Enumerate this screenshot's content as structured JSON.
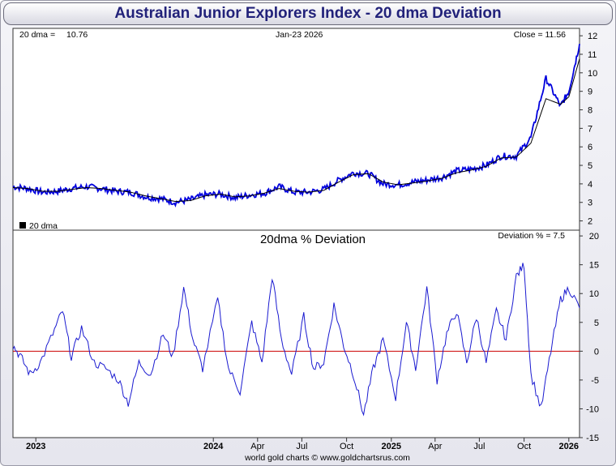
{
  "title": "Australian Junior Explorers Index - 20 dma Deviation",
  "footer": "world gold charts © www.goldchartsrus.com",
  "colors": {
    "price": "#0000dd",
    "dma": "#000000",
    "deviation": "#1a1ad0",
    "zero_line": "#cc0000",
    "title_text": "#22227a"
  },
  "chart_data": [
    {
      "type": "line",
      "panel": "price",
      "info_left_label": "20 dma =",
      "info_left_value": "10.76",
      "info_center": "Jan-23  2026",
      "info_right": "Close = 11.56",
      "legend": "20 dma",
      "ylim": [
        1.5,
        12.4
      ],
      "yticks": [
        "2",
        "3",
        "4",
        "5",
        "6",
        "7",
        "8",
        "9",
        "10",
        "11",
        "12"
      ],
      "series": [
        {
          "name": "price",
          "points": [
            [
              "2022-11-15",
              3.85
            ],
            [
              "2022-12-15",
              3.75
            ],
            [
              "2023-01-15",
              3.55
            ],
            [
              "2023-02-15",
              3.6
            ],
            [
              "2023-03-15",
              3.75
            ],
            [
              "2023-04-15",
              3.85
            ],
            [
              "2023-05-15",
              3.75
            ],
            [
              "2023-06-15",
              3.6
            ],
            [
              "2023-07-15",
              3.55
            ],
            [
              "2023-08-15",
              3.3
            ],
            [
              "2023-09-15",
              3.2
            ],
            [
              "2023-10-15",
              3.0
            ],
            [
              "2023-11-15",
              3.15
            ],
            [
              "2023-12-15",
              3.4
            ],
            [
              "2024-01-15",
              3.45
            ],
            [
              "2024-02-15",
              3.25
            ],
            [
              "2024-03-15",
              3.4
            ],
            [
              "2024-04-15",
              3.5
            ],
            [
              "2024-05-15",
              3.85
            ],
            [
              "2024-06-15",
              3.55
            ],
            [
              "2024-07-15",
              3.55
            ],
            [
              "2024-08-15",
              3.7
            ],
            [
              "2024-09-15",
              4.2
            ],
            [
              "2024-10-15",
              4.6
            ],
            [
              "2024-11-15",
              4.55
            ],
            [
              "2024-12-15",
              4.0
            ],
            [
              "2025-01-15",
              3.95
            ],
            [
              "2025-02-15",
              4.1
            ],
            [
              "2025-03-15",
              4.2
            ],
            [
              "2025-04-15",
              4.35
            ],
            [
              "2025-05-15",
              4.7
            ],
            [
              "2025-06-15",
              4.8
            ],
            [
              "2025-07-15",
              5.0
            ],
            [
              "2025-08-15",
              5.5
            ],
            [
              "2025-09-15",
              5.5
            ],
            [
              "2025-10-15",
              6.5
            ],
            [
              "2025-11-15",
              9.7
            ],
            [
              "2025-12-15",
              8.2
            ],
            [
              "2026-01-01",
              9.0
            ],
            [
              "2026-01-23",
              11.56
            ]
          ]
        },
        {
          "name": "20 dma",
          "points": [
            [
              "2022-11-15",
              3.8
            ],
            [
              "2022-12-15",
              3.75
            ],
            [
              "2023-01-15",
              3.6
            ],
            [
              "2023-02-15",
              3.6
            ],
            [
              "2023-03-15",
              3.7
            ],
            [
              "2023-04-15",
              3.8
            ],
            [
              "2023-05-15",
              3.75
            ],
            [
              "2023-06-15",
              3.65
            ],
            [
              "2023-07-15",
              3.55
            ],
            [
              "2023-08-15",
              3.35
            ],
            [
              "2023-09-15",
              3.2
            ],
            [
              "2023-10-15",
              3.05
            ],
            [
              "2023-11-15",
              3.1
            ],
            [
              "2023-12-15",
              3.35
            ],
            [
              "2024-01-15",
              3.45
            ],
            [
              "2024-02-15",
              3.3
            ],
            [
              "2024-03-15",
              3.35
            ],
            [
              "2024-04-15",
              3.5
            ],
            [
              "2024-05-15",
              3.75
            ],
            [
              "2024-06-15",
              3.6
            ],
            [
              "2024-07-15",
              3.55
            ],
            [
              "2024-08-15",
              3.65
            ],
            [
              "2024-09-15",
              4.1
            ],
            [
              "2024-10-15",
              4.5
            ],
            [
              "2024-11-15",
              4.55
            ],
            [
              "2024-12-15",
              4.1
            ],
            [
              "2025-01-15",
              3.95
            ],
            [
              "2025-02-15",
              4.05
            ],
            [
              "2025-03-15",
              4.15
            ],
            [
              "2025-04-15",
              4.3
            ],
            [
              "2025-05-15",
              4.6
            ],
            [
              "2025-06-15",
              4.75
            ],
            [
              "2025-07-15",
              4.95
            ],
            [
              "2025-08-15",
              5.4
            ],
            [
              "2025-09-15",
              5.45
            ],
            [
              "2025-10-15",
              6.2
            ],
            [
              "2025-11-15",
              8.6
            ],
            [
              "2025-12-15",
              8.3
            ],
            [
              "2026-01-01",
              8.7
            ],
            [
              "2026-01-23",
              10.76
            ]
          ]
        }
      ]
    },
    {
      "type": "line",
      "panel": "deviation",
      "title": "20dma  %  Deviation",
      "info_right": "Deviation % = 7.5",
      "ylim": [
        -15,
        21
      ],
      "yticks": [
        "-15",
        "-10",
        "-5",
        "0",
        "5",
        "10",
        "15",
        "20"
      ],
      "xticks": [
        "2023",
        "2024",
        "Apr",
        "Jul",
        "Oct",
        "2025",
        "Apr",
        "Jul",
        "Oct",
        "2026"
      ],
      "series": [
        {
          "name": "deviation",
          "points": [
            [
              "2022-11-15",
              1
            ],
            [
              "2022-12-01",
              -1
            ],
            [
              "2022-12-20",
              -4
            ],
            [
              "2023-01-10",
              -2
            ],
            [
              "2023-02-05",
              3
            ],
            [
              "2023-02-25",
              7
            ],
            [
              "2023-03-15",
              -1
            ],
            [
              "2023-04-05",
              4
            ],
            [
              "2023-05-01",
              -2
            ],
            [
              "2023-05-25",
              -3
            ],
            [
              "2023-06-20",
              -5
            ],
            [
              "2023-07-10",
              -9
            ],
            [
              "2023-08-01",
              -2
            ],
            [
              "2023-08-25",
              -4
            ],
            [
              "2023-09-20",
              3
            ],
            [
              "2023-10-10",
              -1
            ],
            [
              "2023-11-01",
              11
            ],
            [
              "2023-11-20",
              2
            ],
            [
              "2023-12-10",
              -3
            ],
            [
              "2024-01-10",
              9
            ],
            [
              "2024-02-01",
              -3
            ],
            [
              "2024-02-25",
              -7
            ],
            [
              "2024-03-20",
              5
            ],
            [
              "2024-04-10",
              -2
            ],
            [
              "2024-05-01",
              13
            ],
            [
              "2024-05-20",
              2
            ],
            [
              "2024-06-10",
              -4
            ],
            [
              "2024-07-05",
              6
            ],
            [
              "2024-07-25",
              -3
            ],
            [
              "2024-08-15",
              -2
            ],
            [
              "2024-09-05",
              8
            ],
            [
              "2024-09-25",
              1
            ],
            [
              "2024-10-15",
              -4
            ],
            [
              "2024-11-05",
              -11
            ],
            [
              "2024-11-25",
              -3
            ],
            [
              "2024-12-15",
              2
            ],
            [
              "2025-01-10",
              -8
            ],
            [
              "2025-02-01",
              5
            ],
            [
              "2025-02-20",
              -3
            ],
            [
              "2025-03-15",
              11
            ],
            [
              "2025-04-05",
              -5
            ],
            [
              "2025-04-25",
              3
            ],
            [
              "2025-05-15",
              7
            ],
            [
              "2025-06-05",
              -2
            ],
            [
              "2025-06-25",
              6
            ],
            [
              "2025-07-15",
              -2
            ],
            [
              "2025-08-05",
              7
            ],
            [
              "2025-08-25",
              2
            ],
            [
              "2025-09-15",
              13
            ],
            [
              "2025-10-01",
              15
            ],
            [
              "2025-10-15",
              -4
            ],
            [
              "2025-11-05",
              -10
            ],
            [
              "2025-11-25",
              0
            ],
            [
              "2025-12-15",
              9
            ],
            [
              "2026-01-01",
              11
            ],
            [
              "2026-01-23",
              7.5
            ]
          ]
        }
      ]
    }
  ]
}
